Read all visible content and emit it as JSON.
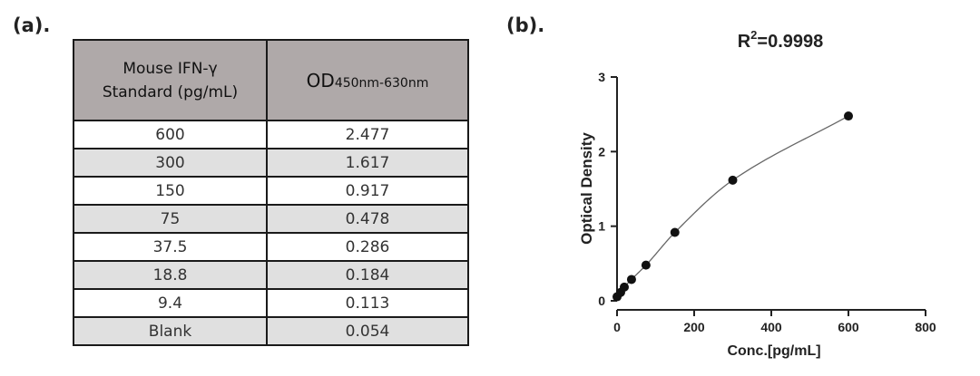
{
  "panel_labels": {
    "a": "(a).",
    "b": "(b)."
  },
  "table": {
    "header_col1_line1": "Mouse IFN-γ",
    "header_col1_line2": "Standard (pg/mL)",
    "header_col2_main": "OD",
    "header_col2_sub": "450nm-630nm",
    "rows": [
      {
        "std": "600",
        "od": "2.477"
      },
      {
        "std": "300",
        "od": "1.617"
      },
      {
        "std": "150",
        "od": "0.917"
      },
      {
        "std": "75",
        "od": "0.478"
      },
      {
        "std": "37.5",
        "od": "0.286"
      },
      {
        "std": "18.8",
        "od": "0.184"
      },
      {
        "std": "9.4",
        "od": "0.113"
      },
      {
        "std": "Blank",
        "od": "0.054"
      }
    ]
  },
  "chart_data": {
    "type": "scatter",
    "title_main": "R",
    "title_sup": "2",
    "title_rest": "=0.9998",
    "xlabel": "Conc.[pg/mL]",
    "ylabel": "Optical Density",
    "xlim": [
      0,
      800
    ],
    "ylim": [
      0,
      3
    ],
    "xticks": [
      0,
      200,
      400,
      600,
      800
    ],
    "yticks": [
      0,
      1,
      2,
      3
    ],
    "grid": false,
    "fit": "smooth curve through standards",
    "series": [
      {
        "x": [
          0,
          9.4,
          18.8,
          37.5,
          75,
          150,
          300,
          600
        ],
        "y": [
          0.054,
          0.113,
          0.184,
          0.286,
          0.478,
          0.917,
          1.617,
          2.477
        ]
      }
    ],
    "point_color": "#111111",
    "curve_color": "#666666"
  }
}
